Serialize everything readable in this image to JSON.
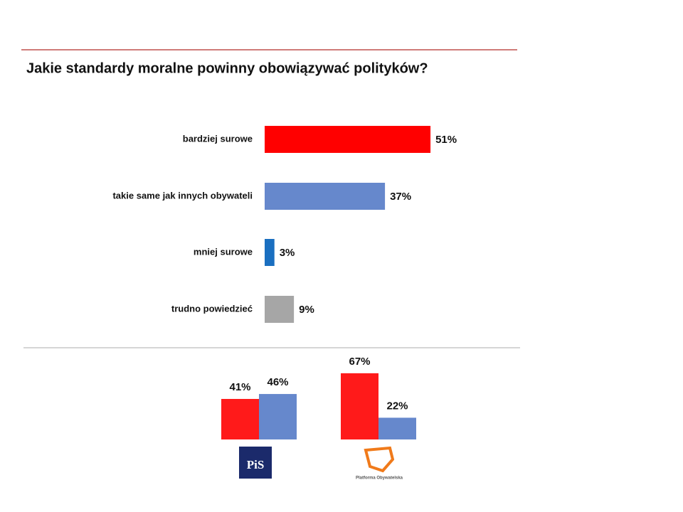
{
  "chart_data": [
    {
      "type": "bar",
      "orientation": "horizontal",
      "title": "Jakie standardy moralne powinny obowiązywać polityków?",
      "categories": [
        "bardziej surowe",
        "takie same jak innych obywateli",
        "mniej surowe",
        "trudno powiedzieć"
      ],
      "values": [
        51,
        37,
        3,
        9
      ],
      "value_labels": [
        "51%",
        "37%",
        "3%",
        "9%"
      ],
      "colors": [
        "#ff0000",
        "#6688cc",
        "#1a6fc0",
        "#a6a6a6"
      ]
    },
    {
      "type": "bar",
      "orientation": "vertical",
      "categories": [
        "PiS",
        "Platforma Obywatelska"
      ],
      "series": [
        {
          "color": "#ff1a1a",
          "values": [
            41,
            67
          ],
          "value_labels": [
            "41%",
            "67%"
          ]
        },
        {
          "color": "#6688cc",
          "values": [
            46,
            22
          ],
          "value_labels": [
            "46%",
            "22%"
          ]
        }
      ]
    }
  ]
}
